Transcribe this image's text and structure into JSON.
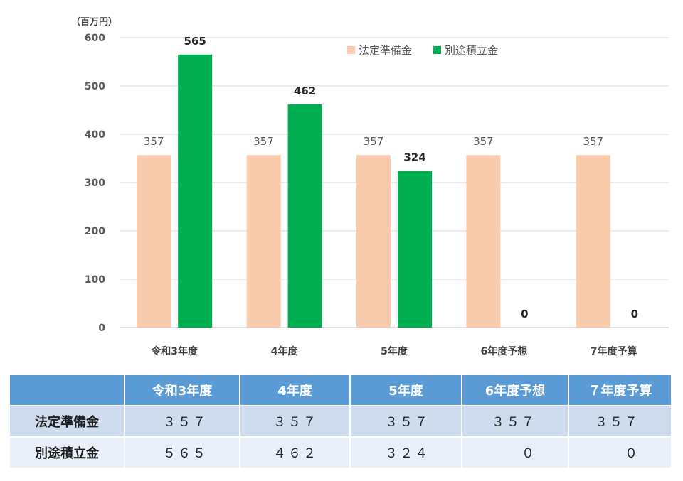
{
  "chart_data": {
    "type": "bar",
    "unit_label": "（百万円）",
    "categories": [
      "令和3年度",
      "4年度",
      "5年度",
      "6年度予想",
      "7年度予算"
    ],
    "series": [
      {
        "name": "法定準備金",
        "values": [
          357,
          357,
          357,
          357,
          357
        ],
        "color": "#f8cbad",
        "label_style": "normal"
      },
      {
        "name": "別途積立金",
        "values": [
          565,
          462,
          324,
          0,
          0
        ],
        "color": "#00b050",
        "label_style": "bold"
      }
    ],
    "ylim": [
      0,
      600
    ],
    "yticks": [
      0,
      100,
      200,
      300,
      400,
      500,
      600
    ],
    "grid": true,
    "legend_position": "top-right"
  },
  "table": {
    "headers": [
      "",
      "令和3年度",
      "4年度",
      "5年度",
      "6年度予想",
      "７年度予算"
    ],
    "rows": [
      {
        "label": "法定準備金",
        "cells": [
          "３５７",
          "３５７",
          "３５７",
          "３５７",
          "３５７"
        ]
      },
      {
        "label": "別途積立金",
        "cells": [
          "５６５",
          "４６２",
          "３２４",
          "０",
          "０"
        ]
      }
    ]
  }
}
